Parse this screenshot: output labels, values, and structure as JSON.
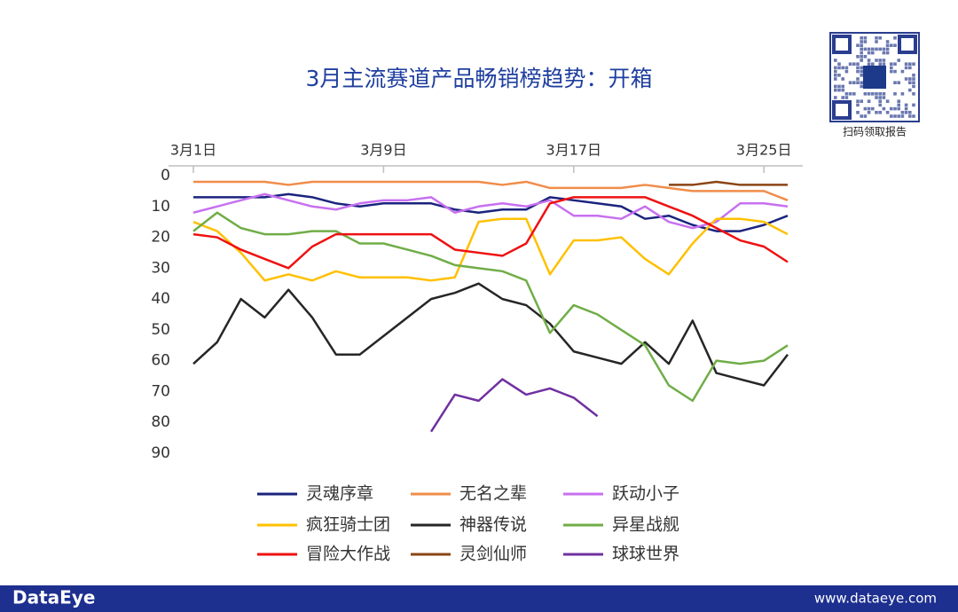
{
  "chart_data": {
    "type": "line",
    "title": "3月主流赛道产品畅销榜趋势：开箱",
    "categories": [
      "3月1日",
      null,
      null,
      null,
      null,
      null,
      null,
      null,
      "3月9日",
      null,
      null,
      null,
      null,
      null,
      null,
      null,
      "3月17日",
      null,
      null,
      null,
      null,
      null,
      null,
      null,
      "3月25日",
      null
    ],
    "series": [
      {
        "name": "灵魂序章",
        "color": "#1a237e",
        "values": [
          7,
          7,
          7,
          7,
          6,
          7,
          9,
          10,
          9,
          9,
          9,
          11,
          12,
          11,
          11,
          7,
          8,
          9,
          10,
          14,
          13,
          16,
          18,
          18,
          16,
          13
        ]
      },
      {
        "name": "无名之辈",
        "color": "#f08c4a",
        "values": [
          2,
          2,
          2,
          2,
          3,
          2,
          2,
          2,
          2,
          2,
          2,
          2,
          2,
          3,
          2,
          4,
          4,
          4,
          4,
          3,
          4,
          5,
          5,
          5,
          5,
          8
        ]
      },
      {
        "name": "跃动小子",
        "color": "#c770f0",
        "values": [
          12,
          10,
          8,
          6,
          8,
          10,
          11,
          9,
          8,
          8,
          7,
          12,
          10,
          9,
          10,
          8,
          13,
          13,
          14,
          10,
          15,
          17,
          15,
          9,
          9,
          10
        ]
      },
      {
        "name": "疯狂骑士团",
        "color": "#ffc000",
        "values": [
          15,
          18,
          25,
          34,
          32,
          34,
          31,
          33,
          33,
          33,
          34,
          33,
          15,
          14,
          14,
          32,
          21,
          21,
          20,
          27,
          32,
          22,
          14,
          14,
          15,
          19
        ]
      },
      {
        "name": "神器传说",
        "color": "#262626",
        "values": [
          61,
          54,
          40,
          46,
          37,
          46,
          58,
          58,
          52,
          46,
          40,
          38,
          35,
          40,
          42,
          48,
          57,
          59,
          61,
          54,
          61,
          47,
          64,
          66,
          68,
          58
        ]
      },
      {
        "name": "异星战舰",
        "color": "#70ad47",
        "values": [
          18,
          12,
          17,
          19,
          19,
          18,
          18,
          22,
          22,
          24,
          26,
          29,
          30,
          31,
          34,
          51,
          42,
          45,
          50,
          55,
          68,
          73,
          60,
          61,
          60,
          55
        ]
      },
      {
        "name": "冒险大作战",
        "color": "#ee1111",
        "values": [
          19,
          20,
          24,
          27,
          30,
          23,
          19,
          19,
          19,
          19,
          19,
          24,
          25,
          26,
          22,
          9,
          7,
          7,
          7,
          7,
          10,
          13,
          17,
          21,
          23,
          28
        ]
      },
      {
        "name": "灵剑仙师",
        "color": "#8b4513",
        "values": [
          null,
          null,
          null,
          null,
          null,
          null,
          null,
          null,
          null,
          null,
          null,
          null,
          null,
          null,
          null,
          null,
          null,
          null,
          null,
          null,
          3,
          3,
          2,
          3,
          3,
          3
        ]
      },
      {
        "name": "球球世界",
        "color": "#7030a0",
        "values": [
          null,
          null,
          null,
          null,
          null,
          null,
          null,
          null,
          null,
          null,
          83,
          71,
          73,
          66,
          71,
          69,
          72,
          78,
          null,
          null,
          null,
          null,
          null,
          null,
          null,
          null
        ]
      }
    ],
    "ylim": [
      0,
      90
    ],
    "yticks": [
      0,
      10,
      20,
      30,
      40,
      50,
      60,
      70,
      80,
      90
    ],
    "y_inverted": true,
    "legend": "bottom"
  },
  "qr_caption": "扫码领取报告",
  "footer": {
    "brand": "DataEye",
    "url": "www.dataeye.com"
  }
}
